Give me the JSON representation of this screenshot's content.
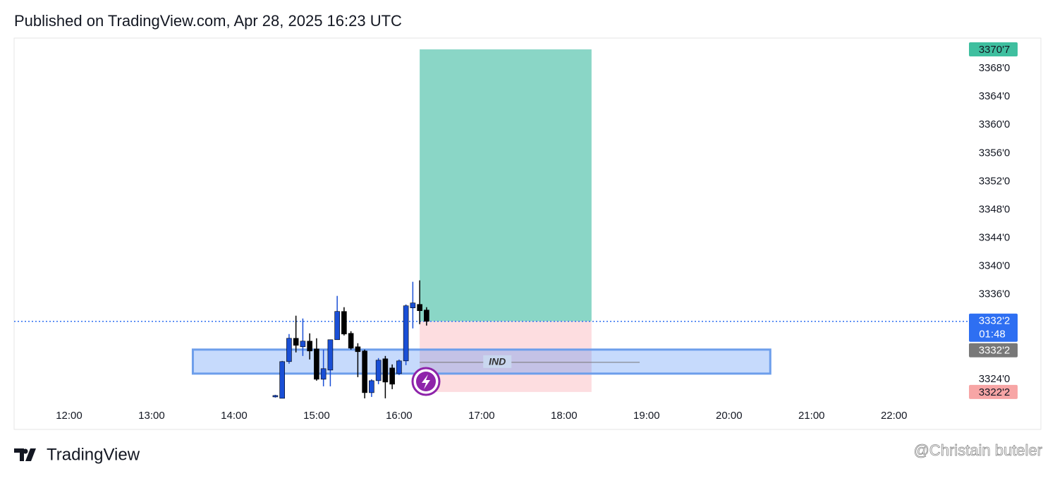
{
  "header": {
    "title": "Published on TradingView.com, Apr 28, 2025 16:23 UTC"
  },
  "chart_data": {
    "type": "candlestick",
    "x": [
      "14:30",
      "14:35",
      "14:40",
      "14:45",
      "14:50",
      "14:55",
      "15:00",
      "15:05",
      "15:10",
      "15:15",
      "15:20",
      "15:25",
      "15:30",
      "15:35",
      "15:40",
      "15:45",
      "15:50",
      "15:55",
      "16:00",
      "16:05",
      "16:10",
      "16:15",
      "16:20"
    ],
    "open": [
      3321.5,
      3321.3,
      3326.5,
      3329.8,
      3328.6,
      3329.4,
      3328.3,
      3324.0,
      3325.3,
      3329.6,
      3333.6,
      3330.5,
      3328.6,
      3328.0,
      3322.1,
      3323.8,
      3326.9,
      3325.6,
      3324.8,
      3326.6,
      3334.1,
      3334.6,
      3333.8
    ],
    "high": [
      3321.8,
      3326.6,
      3330.4,
      3333.0,
      3332.6,
      3330.5,
      3329.8,
      3328.2,
      3329.6,
      3335.8,
      3334.2,
      3330.8,
      3329.1,
      3328.2,
      3324.0,
      3327.0,
      3327.3,
      3326.1,
      3326.8,
      3334.6,
      3337.8,
      3338.0,
      3334.2
    ],
    "low": [
      3321.4,
      3321.3,
      3326.2,
      3327.8,
      3327.3,
      3326.8,
      3323.8,
      3323.0,
      3323.0,
      3329.6,
      3330.2,
      3328.2,
      3324.3,
      3321.3,
      3321.5,
      3323.3,
      3321.3,
      3322.6,
      3324.6,
      3326.0,
      3331.2,
      3331.8,
      3331.6
    ],
    "close": [
      3321.7,
      3326.5,
      3329.8,
      3328.8,
      3329.4,
      3328.0,
      3324.0,
      3325.5,
      3329.6,
      3333.6,
      3330.4,
      3328.4,
      3327.9,
      3322.1,
      3323.8,
      3326.7,
      3323.6,
      3323.3,
      3326.6,
      3334.4,
      3334.8,
      3333.7,
      3332.2
    ],
    "up_color": "#1a4fd6",
    "down_color": "#000000",
    "xlim": [
      "11:20",
      "22:54"
    ],
    "xticks": [
      "12:00",
      "13:00",
      "14:00",
      "15:00",
      "16:00",
      "17:00",
      "18:00",
      "19:00",
      "20:00",
      "21:00",
      "22:00"
    ],
    "ylim": [
      3316.9,
      3372.3
    ],
    "yticks": [
      {
        "value": 3324,
        "label": "3324'0"
      },
      {
        "value": 3336,
        "label": "3336'0"
      },
      {
        "value": 3340,
        "label": "3340'0"
      },
      {
        "value": 3344,
        "label": "3344'0"
      },
      {
        "value": 3348,
        "label": "3348'0"
      },
      {
        "value": 3352,
        "label": "3352'0"
      },
      {
        "value": 3356,
        "label": "3356'0"
      },
      {
        "value": 3360,
        "label": "3360'0"
      },
      {
        "value": 3364,
        "label": "3364'0"
      },
      {
        "value": 3368,
        "label": "3368'0"
      }
    ],
    "grid": false,
    "position": {
      "start": "16:15",
      "end": "18:20",
      "target": {
        "value": 3370.7,
        "label": "3370'7",
        "color": "#8ad6c6",
        "tag_color": "#3fbf9f"
      },
      "entry": {
        "value": 3332.2,
        "label": "3332'2",
        "tag_color": "#787878"
      },
      "stop": {
        "value": 3322.2,
        "label": "3322'2",
        "color": "#fddde0",
        "tag_color": "#f7a5a5"
      }
    },
    "zone": {
      "start": "13:30",
      "end": "20:30",
      "top": 3328.2,
      "bottom": 3324.8,
      "label": "IND",
      "line_end": "18:55"
    },
    "last_price": {
      "value": 3332.2,
      "label": "3332'2",
      "countdown": "01:48",
      "color": "#2e6ff2"
    }
  },
  "footer": {
    "logo": "TradingView",
    "watermark": "@Christain buteler"
  }
}
